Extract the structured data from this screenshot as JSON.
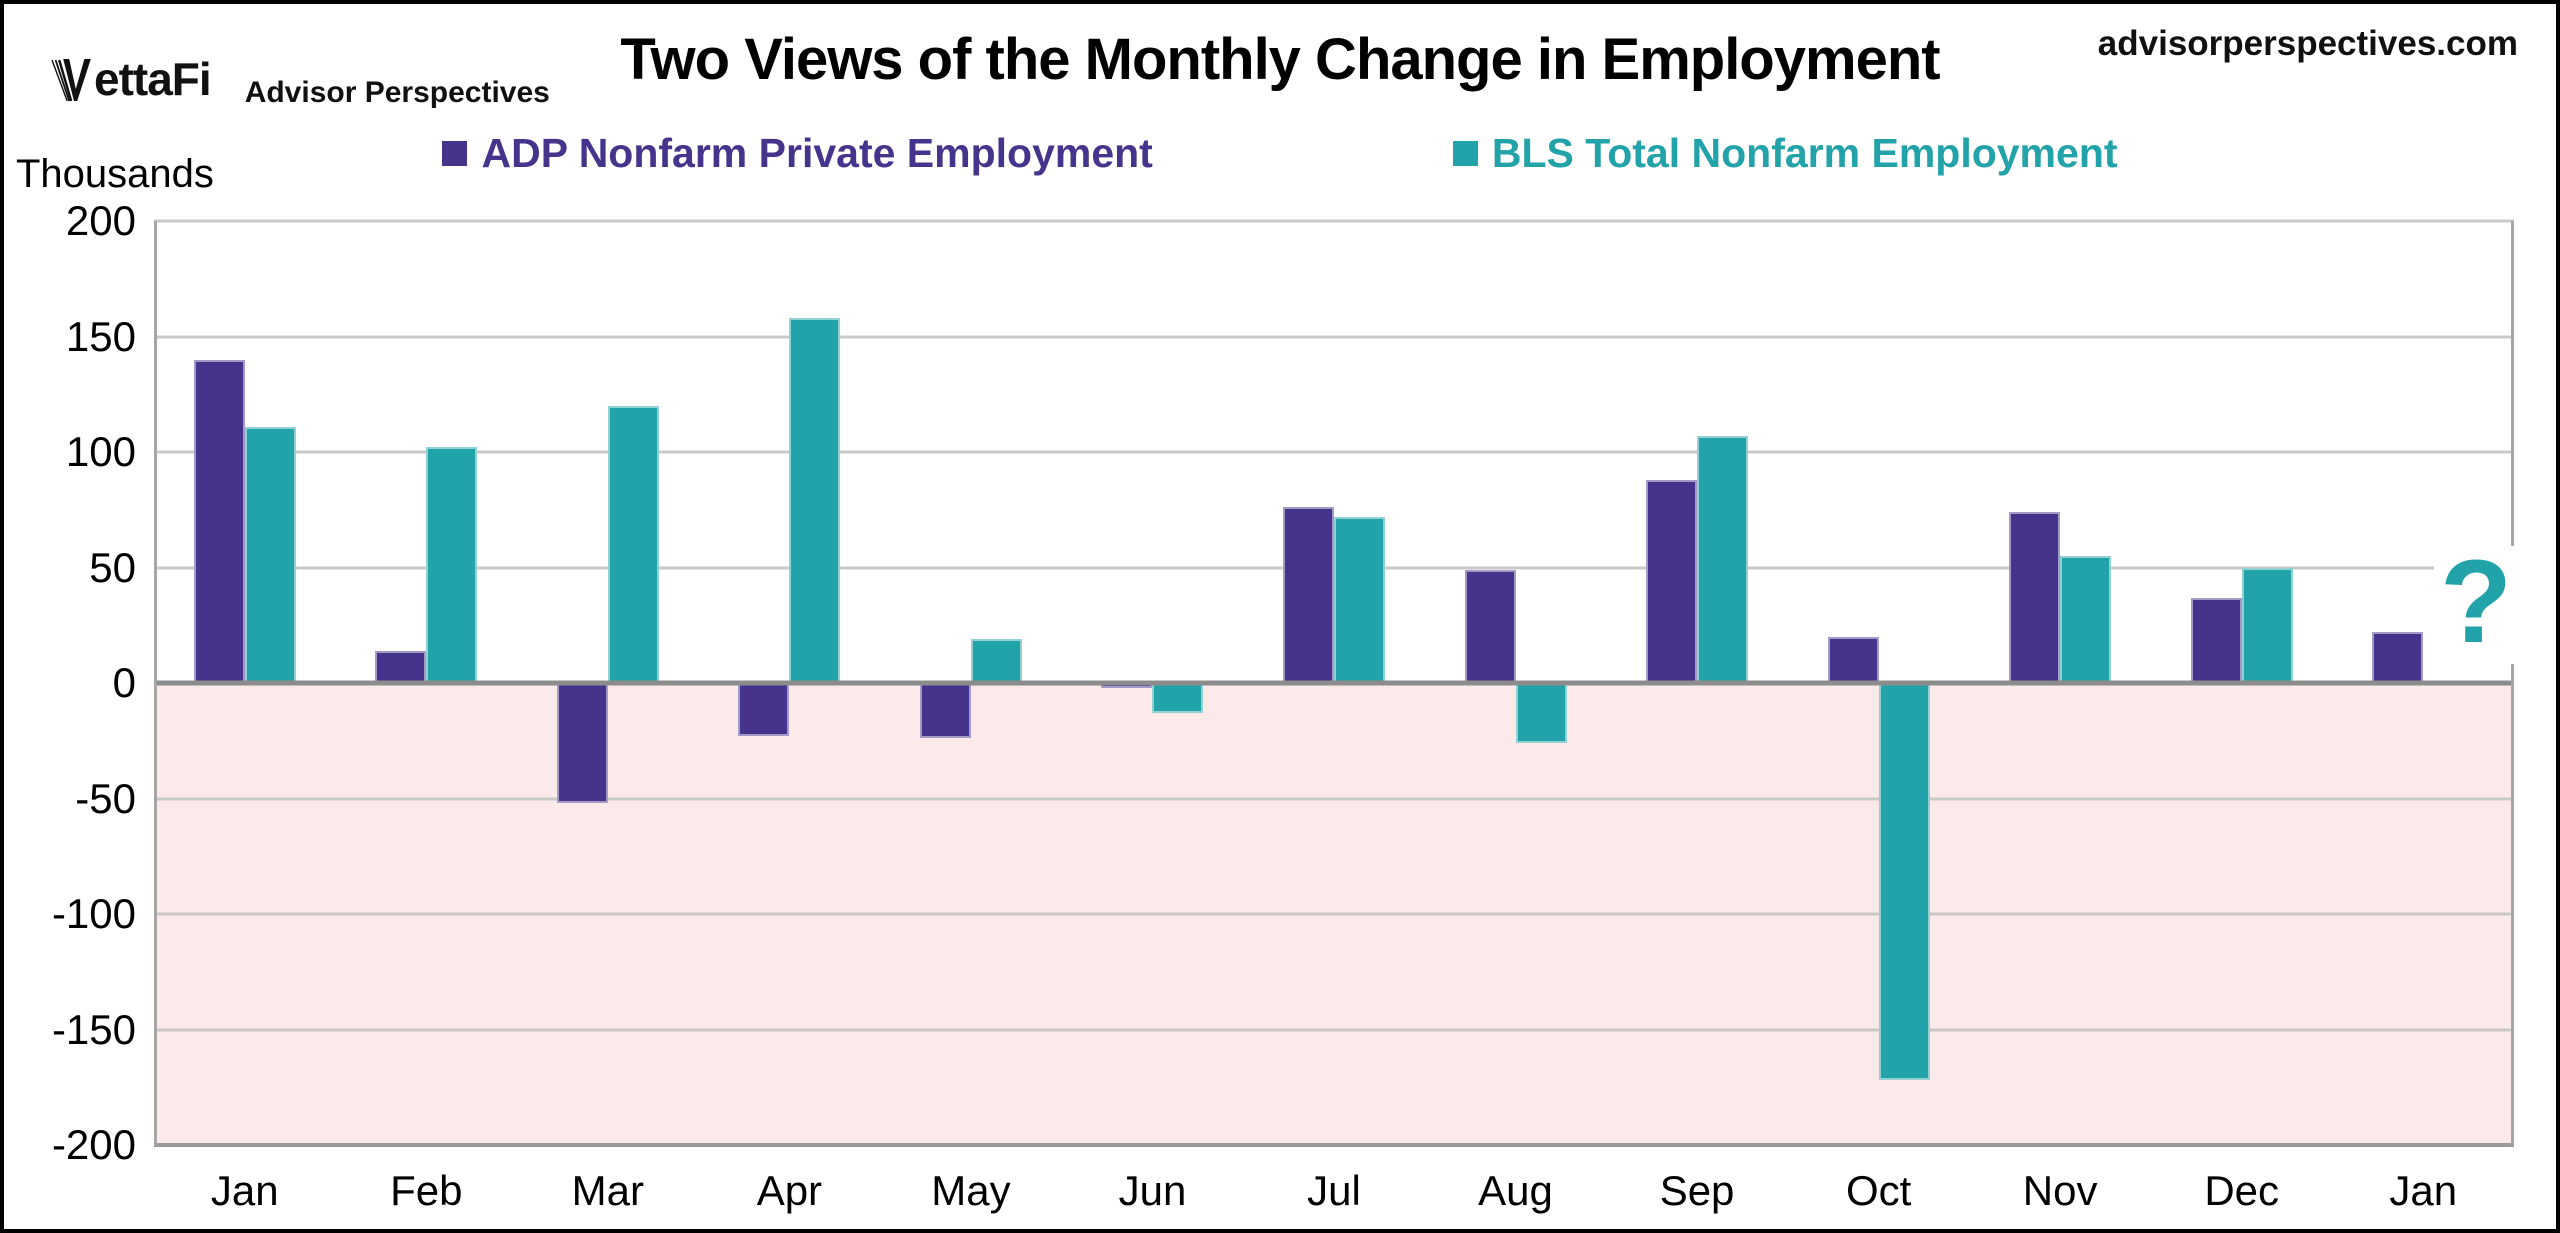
{
  "header": {
    "logo_vettafi": "ettaFi",
    "logo_advisor": "Advisor Perspectives",
    "title": "Two Views of the Monthly Change in Employment",
    "website": "advisorperspectives.com"
  },
  "axis_unit_label": "Thousands",
  "colors": {
    "adp_purple": "#46348C",
    "bls_teal": "#22A2A9",
    "negative_region_pink": "#FCE9E9",
    "gridline_gray": "#C9C9C9",
    "zero_axis_gray": "#8C8C8C",
    "plot_border_gray": "#A6A6A6",
    "bottom_line_gray": "#9B9B9B"
  },
  "chart_data": {
    "type": "bar",
    "title": "Two Views of the Monthly Change in Employment",
    "categories": [
      "Jan",
      "Feb",
      "Mar",
      "Apr",
      "May",
      "Jun",
      "Jul",
      "Aug",
      "Sep",
      "Oct",
      "Nov",
      "Dec",
      "Jan"
    ],
    "series": [
      {
        "name": "ADP Nonfarm Private Employment",
        "color": "#46348C",
        "values": [
          140,
          14,
          -52,
          -23,
          -24,
          -2,
          76,
          49,
          88,
          20,
          74,
          37,
          22
        ]
      },
      {
        "name": "BLS Total Nonfarm Employment",
        "color": "#22A2A9",
        "values": [
          111,
          102,
          120,
          158,
          19,
          -13,
          72,
          -26,
          107,
          -172,
          55,
          50,
          null
        ]
      }
    ],
    "xlabel": "",
    "ylabel": "Thousands",
    "ylim": [
      -200,
      200
    ],
    "yticks": [
      200,
      150,
      100,
      50,
      0,
      -50,
      -100,
      -150,
      -200
    ],
    "grid": true,
    "legend_position": "top-center",
    "negative_region_shaded": true,
    "missing_value_marker": "?"
  }
}
